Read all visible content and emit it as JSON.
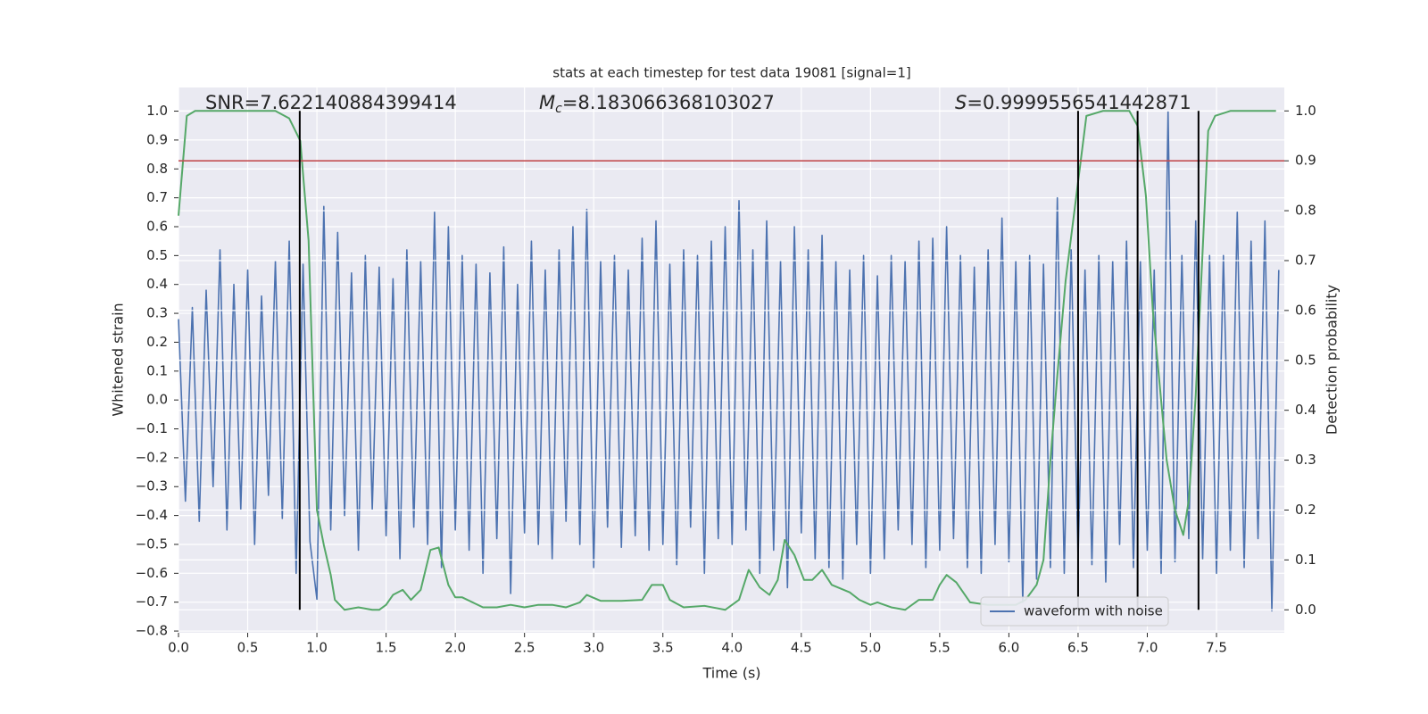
{
  "chart_data": {
    "type": "line",
    "title": "stats at each timestep for test data 19081 [signal=1]",
    "xlabel": "Time (s)",
    "ylabel": "Whitened strain",
    "y2label": "Detection probability",
    "annotations": [
      {
        "label": "SNR=7.622140884399414"
      },
      {
        "symbol": "M",
        "subscript": "c",
        "label": "=8.183066368103027"
      },
      {
        "symbol": "S",
        "label": "=0.9999556541442871"
      }
    ],
    "xlim": [
      0,
      7.99
    ],
    "ylim": [
      -0.806,
      1.082
    ],
    "y2lim": [
      -0.046,
      1.047
    ],
    "xticks": [
      {
        "value": 0,
        "label": "0.0"
      },
      0.5,
      {
        "value": 1,
        "label": "1.0"
      },
      1.5,
      {
        "value": 2,
        "label": "2.0"
      },
      2.5,
      {
        "value": 3,
        "label": "3.0"
      },
      3.5,
      {
        "value": 4,
        "label": "4.0"
      },
      4.5,
      {
        "value": 5,
        "label": "5.0"
      },
      5.5,
      {
        "value": 6,
        "label": "6.0"
      },
      6.5,
      {
        "value": 7,
        "label": "7.0"
      },
      7.5
    ],
    "yticks": [
      {
        "value": -0.8,
        "label": "−0.8"
      },
      {
        "value": -0.7,
        "label": "−0.7"
      },
      {
        "value": -0.6,
        "label": "−0.6"
      },
      {
        "value": -0.5,
        "label": "−0.5"
      },
      {
        "value": -0.4,
        "label": "−0.4"
      },
      {
        "value": -0.3,
        "label": "−0.3"
      },
      {
        "value": -0.2,
        "label": "−0.2"
      },
      {
        "value": -0.1,
        "label": "−0.1"
      },
      {
        "value": 0,
        "label": "0.0"
      },
      0.1,
      0.2,
      0.3,
      0.4,
      0.5,
      0.6,
      0.7,
      0.8,
      0.9,
      {
        "value": 1,
        "label": "1.0"
      }
    ],
    "y2ticks": [
      {
        "value": 0,
        "label": "0.0"
      },
      0.1,
      0.2,
      0.3,
      0.4,
      0.5,
      0.6,
      0.7,
      0.8,
      0.9,
      {
        "value": 1,
        "label": "1.0"
      }
    ],
    "grid": true,
    "legend": "lower right",
    "series": [
      {
        "name": "waveform with noise",
        "color": "#4c72b0",
        "x": [
          0,
          0.05,
          0.1,
          0.15,
          0.2,
          0.25,
          0.3,
          0.35,
          0.4,
          0.45,
          0.5,
          0.55,
          0.6,
          0.65,
          0.7,
          0.75,
          0.8,
          0.85,
          0.9,
          0.95,
          1,
          1.05,
          1.1,
          1.15,
          1.2,
          1.25,
          1.3,
          1.35,
          1.4,
          1.45,
          1.5,
          1.55,
          1.6,
          1.65,
          1.7,
          1.75,
          1.8,
          1.85,
          1.9,
          1.95,
          2,
          2.05,
          2.1,
          2.15,
          2.2,
          2.25,
          2.3,
          2.35,
          2.4,
          2.45,
          2.5,
          2.55,
          2.6,
          2.65,
          2.7,
          2.75,
          2.8,
          2.85,
          2.9,
          2.95,
          3,
          3.05,
          3.1,
          3.15,
          3.2,
          3.25,
          3.3,
          3.35,
          3.4,
          3.45,
          3.5,
          3.55,
          3.6,
          3.65,
          3.7,
          3.75,
          3.8,
          3.85,
          3.9,
          3.95,
          4,
          4.05,
          4.1,
          4.15,
          4.2,
          4.25,
          4.3,
          4.35,
          4.4,
          4.45,
          4.5,
          4.55,
          4.6,
          4.65,
          4.7,
          4.75,
          4.8,
          4.85,
          4.9,
          4.95,
          5,
          5.05,
          5.1,
          5.15,
          5.2,
          5.25,
          5.3,
          5.35,
          5.4,
          5.45,
          5.5,
          5.55,
          5.6,
          5.65,
          5.7,
          5.75,
          5.8,
          5.85,
          5.9,
          5.95,
          6,
          6.05,
          6.1,
          6.15,
          6.2,
          6.25,
          6.3,
          6.35,
          6.4,
          6.45,
          6.5,
          6.55,
          6.6,
          6.65,
          6.7,
          6.75,
          6.8,
          6.85,
          6.9,
          6.95,
          7,
          7.05,
          7.1,
          7.15,
          7.2,
          7.25,
          7.3,
          7.35,
          7.4,
          7.45,
          7.5,
          7.55,
          7.6,
          7.65,
          7.7,
          7.75,
          7.8,
          7.85,
          7.9,
          7.95
        ],
        "values": [
          0.28,
          -0.35,
          0.32,
          -0.42,
          0.38,
          -0.3,
          0.52,
          -0.45,
          0.4,
          -0.38,
          0.45,
          -0.5,
          0.36,
          -0.33,
          0.48,
          -0.41,
          0.55,
          -0.6,
          0.47,
          -0.49,
          -0.69,
          0.67,
          -0.45,
          0.58,
          -0.4,
          0.44,
          -0.52,
          0.5,
          -0.38,
          0.46,
          -0.47,
          0.42,
          -0.55,
          0.52,
          -0.44,
          0.48,
          -0.5,
          0.65,
          -0.58,
          0.6,
          -0.45,
          0.5,
          -0.52,
          0.47,
          -0.6,
          0.44,
          -0.48,
          0.53,
          -0.67,
          0.4,
          -0.46,
          0.55,
          -0.5,
          0.45,
          -0.55,
          0.52,
          -0.42,
          0.6,
          -0.5,
          0.66,
          -0.58,
          0.48,
          -0.44,
          0.5,
          -0.51,
          0.45,
          -0.47,
          0.56,
          -0.52,
          0.62,
          -0.5,
          0.47,
          -0.57,
          0.52,
          -0.44,
          0.5,
          -0.6,
          0.55,
          -0.48,
          0.6,
          -0.5,
          0.69,
          -0.45,
          0.52,
          -0.6,
          0.62,
          -0.52,
          0.48,
          -0.65,
          0.6,
          -0.46,
          0.52,
          -0.55,
          0.57,
          -0.58,
          0.48,
          -0.62,
          0.45,
          -0.5,
          0.5,
          -0.6,
          0.43,
          -0.55,
          0.5,
          -0.45,
          0.48,
          -0.5,
          0.55,
          -0.58,
          0.56,
          -0.52,
          0.6,
          -0.48,
          0.5,
          -0.58,
          0.46,
          -0.6,
          0.52,
          -0.5,
          0.63,
          -0.56,
          0.48,
          -0.7,
          0.5,
          -0.62,
          0.47,
          -0.58,
          0.7,
          -0.6,
          0.52,
          -0.55,
          0.45,
          -0.57,
          0.5,
          -0.63,
          0.48,
          -0.5,
          0.55,
          -0.58,
          0.48,
          -0.52,
          0.45,
          -0.6,
          1.0,
          -0.56,
          0.5,
          -0.48,
          0.62,
          -0.55,
          0.5,
          -0.6,
          0.5,
          -0.52,
          0.65,
          -0.58,
          0.55,
          -0.48,
          0.62,
          -0.73,
          0.45
        ]
      },
      {
        "color": "#55a868",
        "axis": "y2",
        "x": [
          0,
          0.06,
          0.12,
          0.5,
          0.7,
          0.8,
          0.88,
          0.94,
          1.0,
          1.05,
          1.1,
          1.13,
          1.2,
          1.3,
          1.4,
          1.45,
          1.5,
          1.55,
          1.62,
          1.68,
          1.75,
          1.82,
          1.88,
          1.95,
          2.0,
          2.05,
          2.2,
          2.3,
          2.4,
          2.5,
          2.6,
          2.7,
          2.8,
          2.9,
          2.95,
          3.05,
          3.2,
          3.35,
          3.42,
          3.5,
          3.55,
          3.65,
          3.8,
          3.95,
          4.05,
          4.12,
          4.2,
          4.27,
          4.33,
          4.38,
          4.45,
          4.52,
          4.58,
          4.65,
          4.72,
          4.85,
          4.92,
          5.0,
          5.05,
          5.15,
          5.25,
          5.35,
          5.45,
          5.5,
          5.55,
          5.62,
          5.72,
          5.85,
          5.95,
          6.05,
          6.12,
          6.2,
          6.25,
          6.3,
          6.35,
          6.41,
          6.51,
          6.56,
          6.68,
          6.87,
          6.93,
          6.99,
          7.04,
          7.14,
          7.2,
          7.26,
          7.3,
          7.35,
          7.4,
          7.44,
          7.49,
          7.6,
          7.93
        ],
        "values": [
          0.79,
          0.99,
          1.0,
          1.0,
          1.0,
          0.985,
          0.94,
          0.74,
          0.2,
          0.13,
          0.07,
          0.02,
          0.0,
          0.005,
          0.0,
          0.0,
          0.01,
          0.03,
          0.04,
          0.02,
          0.04,
          0.12,
          0.125,
          0.05,
          0.025,
          0.025,
          0.005,
          0.005,
          0.01,
          0.005,
          0.01,
          0.01,
          0.005,
          0.015,
          0.03,
          0.018,
          0.018,
          0.02,
          0.05,
          0.05,
          0.02,
          0.005,
          0.008,
          0.0,
          0.02,
          0.08,
          0.045,
          0.03,
          0.06,
          0.14,
          0.11,
          0.06,
          0.06,
          0.08,
          0.05,
          0.035,
          0.02,
          0.01,
          0.015,
          0.005,
          0.0,
          0.02,
          0.02,
          0.05,
          0.07,
          0.055,
          0.015,
          0.01,
          0.01,
          0.01,
          0.02,
          0.05,
          0.1,
          0.3,
          0.47,
          0.66,
          0.88,
          0.99,
          1.0,
          1.0,
          0.97,
          0.83,
          0.6,
          0.3,
          0.2,
          0.15,
          0.22,
          0.43,
          0.72,
          0.96,
          0.99,
          1.0,
          1.0
        ]
      }
    ],
    "hline": {
      "value": 0.9,
      "axis": "y2",
      "color": "#c44e52"
    },
    "vlines": {
      "x": [
        0.876,
        6.5,
        6.93,
        7.37
      ],
      "color": "#000000"
    }
  }
}
